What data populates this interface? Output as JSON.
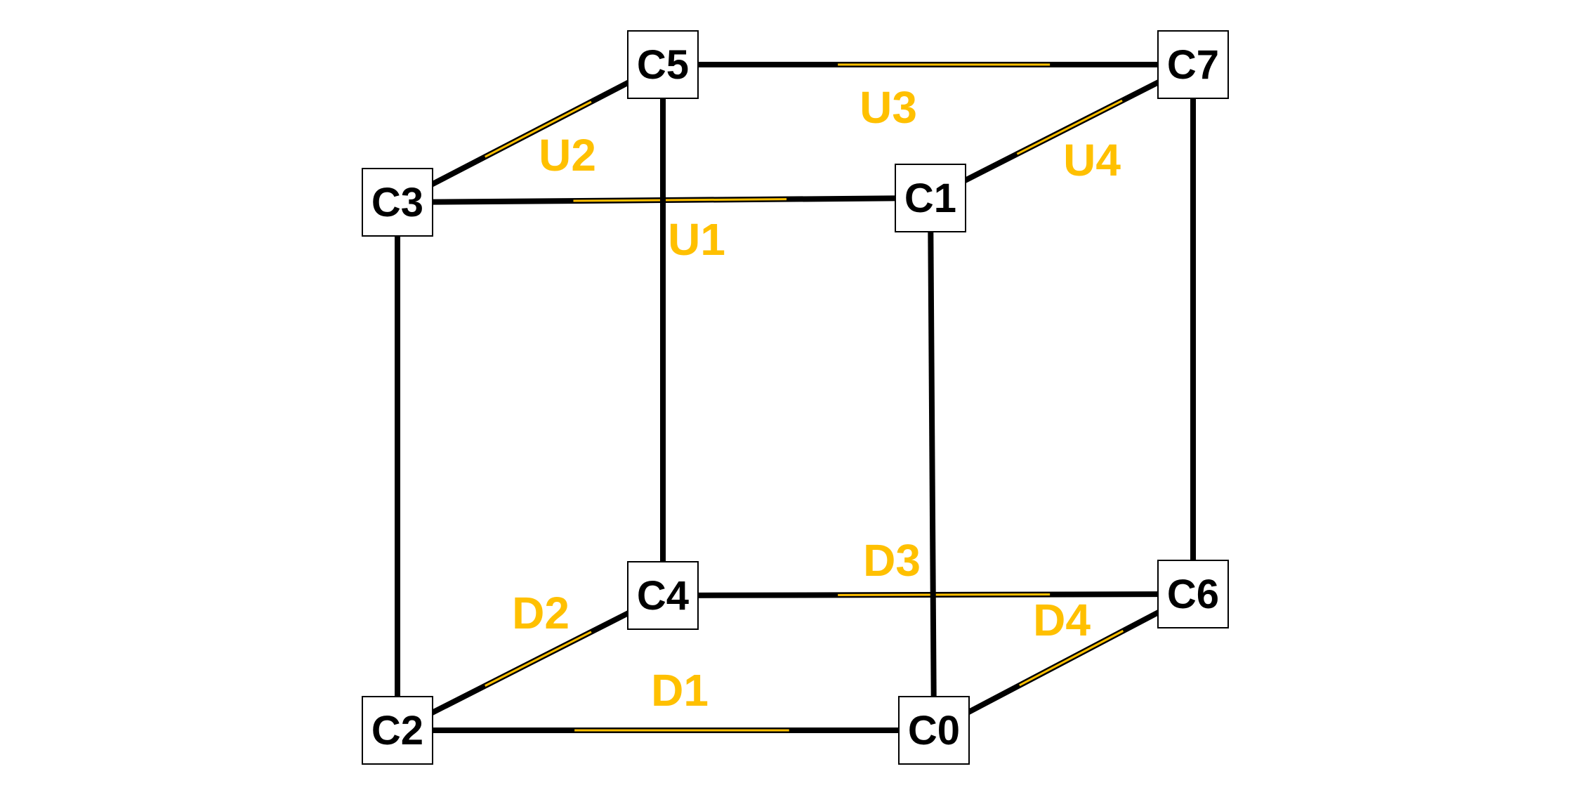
{
  "colors": {
    "edge": "#000000",
    "accent": "#FFC000",
    "node_fill": "#FFFFFF"
  },
  "nodes": [
    {
      "id": "C0",
      "label": "C0"
    },
    {
      "id": "C1",
      "label": "C1"
    },
    {
      "id": "C2",
      "label": "C2"
    },
    {
      "id": "C3",
      "label": "C3"
    },
    {
      "id": "C4",
      "label": "C4"
    },
    {
      "id": "C5",
      "label": "C5"
    },
    {
      "id": "C6",
      "label": "C6"
    },
    {
      "id": "C7",
      "label": "C7"
    }
  ],
  "edges": [
    {
      "from": "C2",
      "to": "C0",
      "label": "D1"
    },
    {
      "from": "C2",
      "to": "C4",
      "label": "D2"
    },
    {
      "from": "C4",
      "to": "C6",
      "label": "D3"
    },
    {
      "from": "C0",
      "to": "C6",
      "label": "D4"
    },
    {
      "from": "C3",
      "to": "C1",
      "label": "U1"
    },
    {
      "from": "C3",
      "to": "C5",
      "label": "U2"
    },
    {
      "from": "C5",
      "to": "C7",
      "label": "U3"
    },
    {
      "from": "C1",
      "to": "C7",
      "label": "U4"
    },
    {
      "from": "C2",
      "to": "C3",
      "label": ""
    },
    {
      "from": "C0",
      "to": "C1",
      "label": ""
    },
    {
      "from": "C4",
      "to": "C5",
      "label": ""
    },
    {
      "from": "C6",
      "to": "C7",
      "label": ""
    }
  ]
}
